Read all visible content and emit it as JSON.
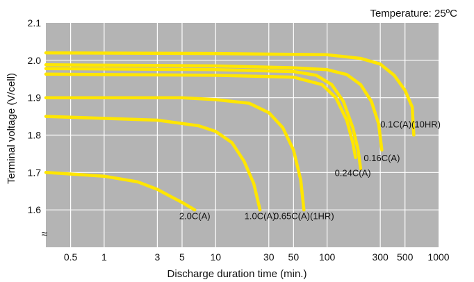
{
  "chart_data": {
    "type": "line",
    "xscale": "log",
    "xlim": [
      0.3,
      1000
    ],
    "ylim": [
      1.5,
      2.1
    ],
    "xlabel": "Discharge duration time (min.)",
    "ylabel": "Terminal voltage (V/cell)",
    "annotation": "Temperature: 25ºC",
    "axis_break_symbol": "≈",
    "grid": true,
    "plot_background": "#b4b4b4",
    "line_color": "#ffe600",
    "x_ticks": [
      {
        "v": 0.5,
        "t": "0.5"
      },
      {
        "v": 1,
        "t": "1"
      },
      {
        "v": 3,
        "t": "3"
      },
      {
        "v": 5,
        "t": "5"
      },
      {
        "v": 10,
        "t": "10"
      },
      {
        "v": 30,
        "t": "30"
      },
      {
        "v": 50,
        "t": "50"
      },
      {
        "v": 100,
        "t": "100"
      },
      {
        "v": 300,
        "t": "300"
      },
      {
        "v": 500,
        "t": "500"
      },
      {
        "v": 1000,
        "t": "1000"
      }
    ],
    "x_gridlines": [
      0.5,
      1,
      3,
      5,
      10,
      30,
      50,
      100,
      300,
      500
    ],
    "y_ticks": [
      {
        "v": 1.6,
        "t": "1.6"
      },
      {
        "v": 1.7,
        "t": "1.7"
      },
      {
        "v": 1.8,
        "t": "1.8"
      },
      {
        "v": 1.9,
        "t": "1.9"
      },
      {
        "v": 2.0,
        "t": "2.0"
      },
      {
        "v": 2.1,
        "t": "2.1"
      }
    ],
    "series": [
      {
        "name": "0.1C(A)(10HR)",
        "points": [
          [
            0.3,
            2.02
          ],
          [
            10,
            2.018
          ],
          [
            100,
            2.015
          ],
          [
            200,
            2.005
          ],
          [
            300,
            1.99
          ],
          [
            400,
            1.96
          ],
          [
            500,
            1.92
          ],
          [
            580,
            1.875
          ],
          [
            600,
            1.8
          ]
        ]
      },
      {
        "name": "0.16C(A)",
        "points": [
          [
            0.3,
            1.988
          ],
          [
            10,
            1.985
          ],
          [
            50,
            1.98
          ],
          [
            100,
            1.975
          ],
          [
            150,
            1.962
          ],
          [
            200,
            1.935
          ],
          [
            250,
            1.89
          ],
          [
            290,
            1.83
          ],
          [
            310,
            1.76
          ]
        ]
      },
      {
        "name": "0.24C(A)",
        "points": [
          [
            0.3,
            1.978
          ],
          [
            10,
            1.975
          ],
          [
            50,
            1.97
          ],
          [
            80,
            1.96
          ],
          [
            110,
            1.935
          ],
          [
            140,
            1.89
          ],
          [
            170,
            1.82
          ],
          [
            190,
            1.76
          ],
          [
            200,
            1.71
          ]
        ]
      },
      {
        "name": "",
        "points": [
          [
            0.3,
            1.963
          ],
          [
            10,
            1.96
          ],
          [
            50,
            1.955
          ],
          [
            90,
            1.935
          ],
          [
            120,
            1.9
          ],
          [
            150,
            1.84
          ],
          [
            170,
            1.78
          ],
          [
            180,
            1.74
          ]
        ]
      },
      {
        "name": "0.65C(A)(1HR)",
        "points": [
          [
            0.3,
            1.9
          ],
          [
            5,
            1.9
          ],
          [
            10,
            1.895
          ],
          [
            20,
            1.885
          ],
          [
            30,
            1.86
          ],
          [
            40,
            1.82
          ],
          [
            50,
            1.76
          ],
          [
            58,
            1.68
          ],
          [
            62,
            1.6
          ]
        ]
      },
      {
        "name": "1.0C(A)",
        "points": [
          [
            0.3,
            1.85
          ],
          [
            3,
            1.84
          ],
          [
            7,
            1.825
          ],
          [
            10,
            1.81
          ],
          [
            14,
            1.78
          ],
          [
            18,
            1.73
          ],
          [
            22,
            1.67
          ],
          [
            25,
            1.6
          ]
        ]
      },
      {
        "name": "2.0C(A)",
        "points": [
          [
            0.3,
            1.7
          ],
          [
            1,
            1.69
          ],
          [
            2,
            1.675
          ],
          [
            3,
            1.655
          ],
          [
            4,
            1.635
          ],
          [
            5,
            1.62
          ],
          [
            6.5,
            1.6
          ]
        ]
      }
    ],
    "labels": [
      {
        "text": "0.1C(A)(10HR)",
        "x": 560,
        "y": 1.82
      },
      {
        "text": "0.16C(A)",
        "x": 310,
        "y": 1.73
      },
      {
        "text": "0.24C(A)",
        "x": 170,
        "y": 1.69
      },
      {
        "text": "0.65C(A)(1HR)",
        "x": 62,
        "y": 1.575
      },
      {
        "text": "1.0C(A)",
        "x": 25,
        "y": 1.575
      },
      {
        "text": "2.0C(A)",
        "x": 6.5,
        "y": 1.575
      }
    ]
  }
}
